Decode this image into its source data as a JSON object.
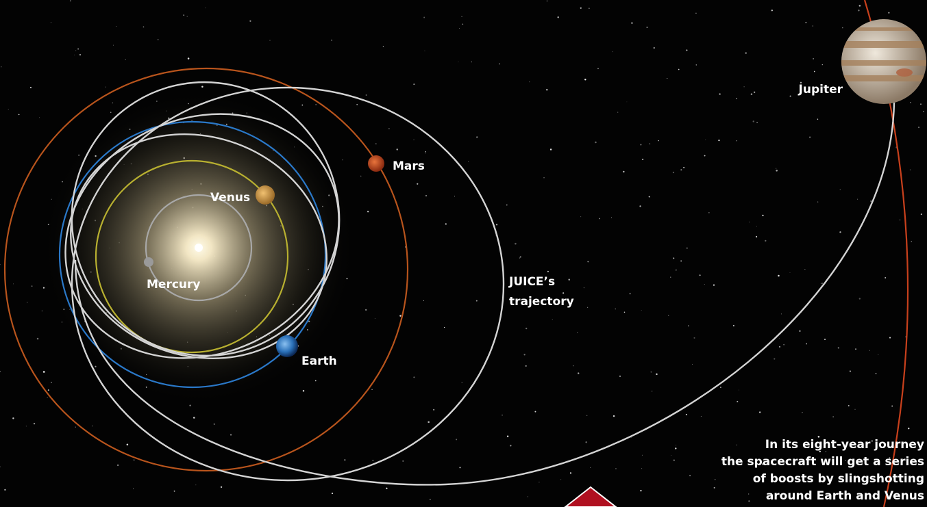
{
  "bodies": [
    {
      "label": "Jupiter"
    },
    {
      "label": "Mars"
    },
    {
      "label": "Venus"
    },
    {
      "label": "Mercury"
    },
    {
      "label": "Earth"
    }
  ],
  "trajectory_label": [
    "JUICE’s",
    "trajectory"
  ],
  "caption": [
    "In its eight-year journey",
    "the spacecraft will get a series",
    "of boosts by slingshotting",
    "around Earth and Venus"
  ]
}
